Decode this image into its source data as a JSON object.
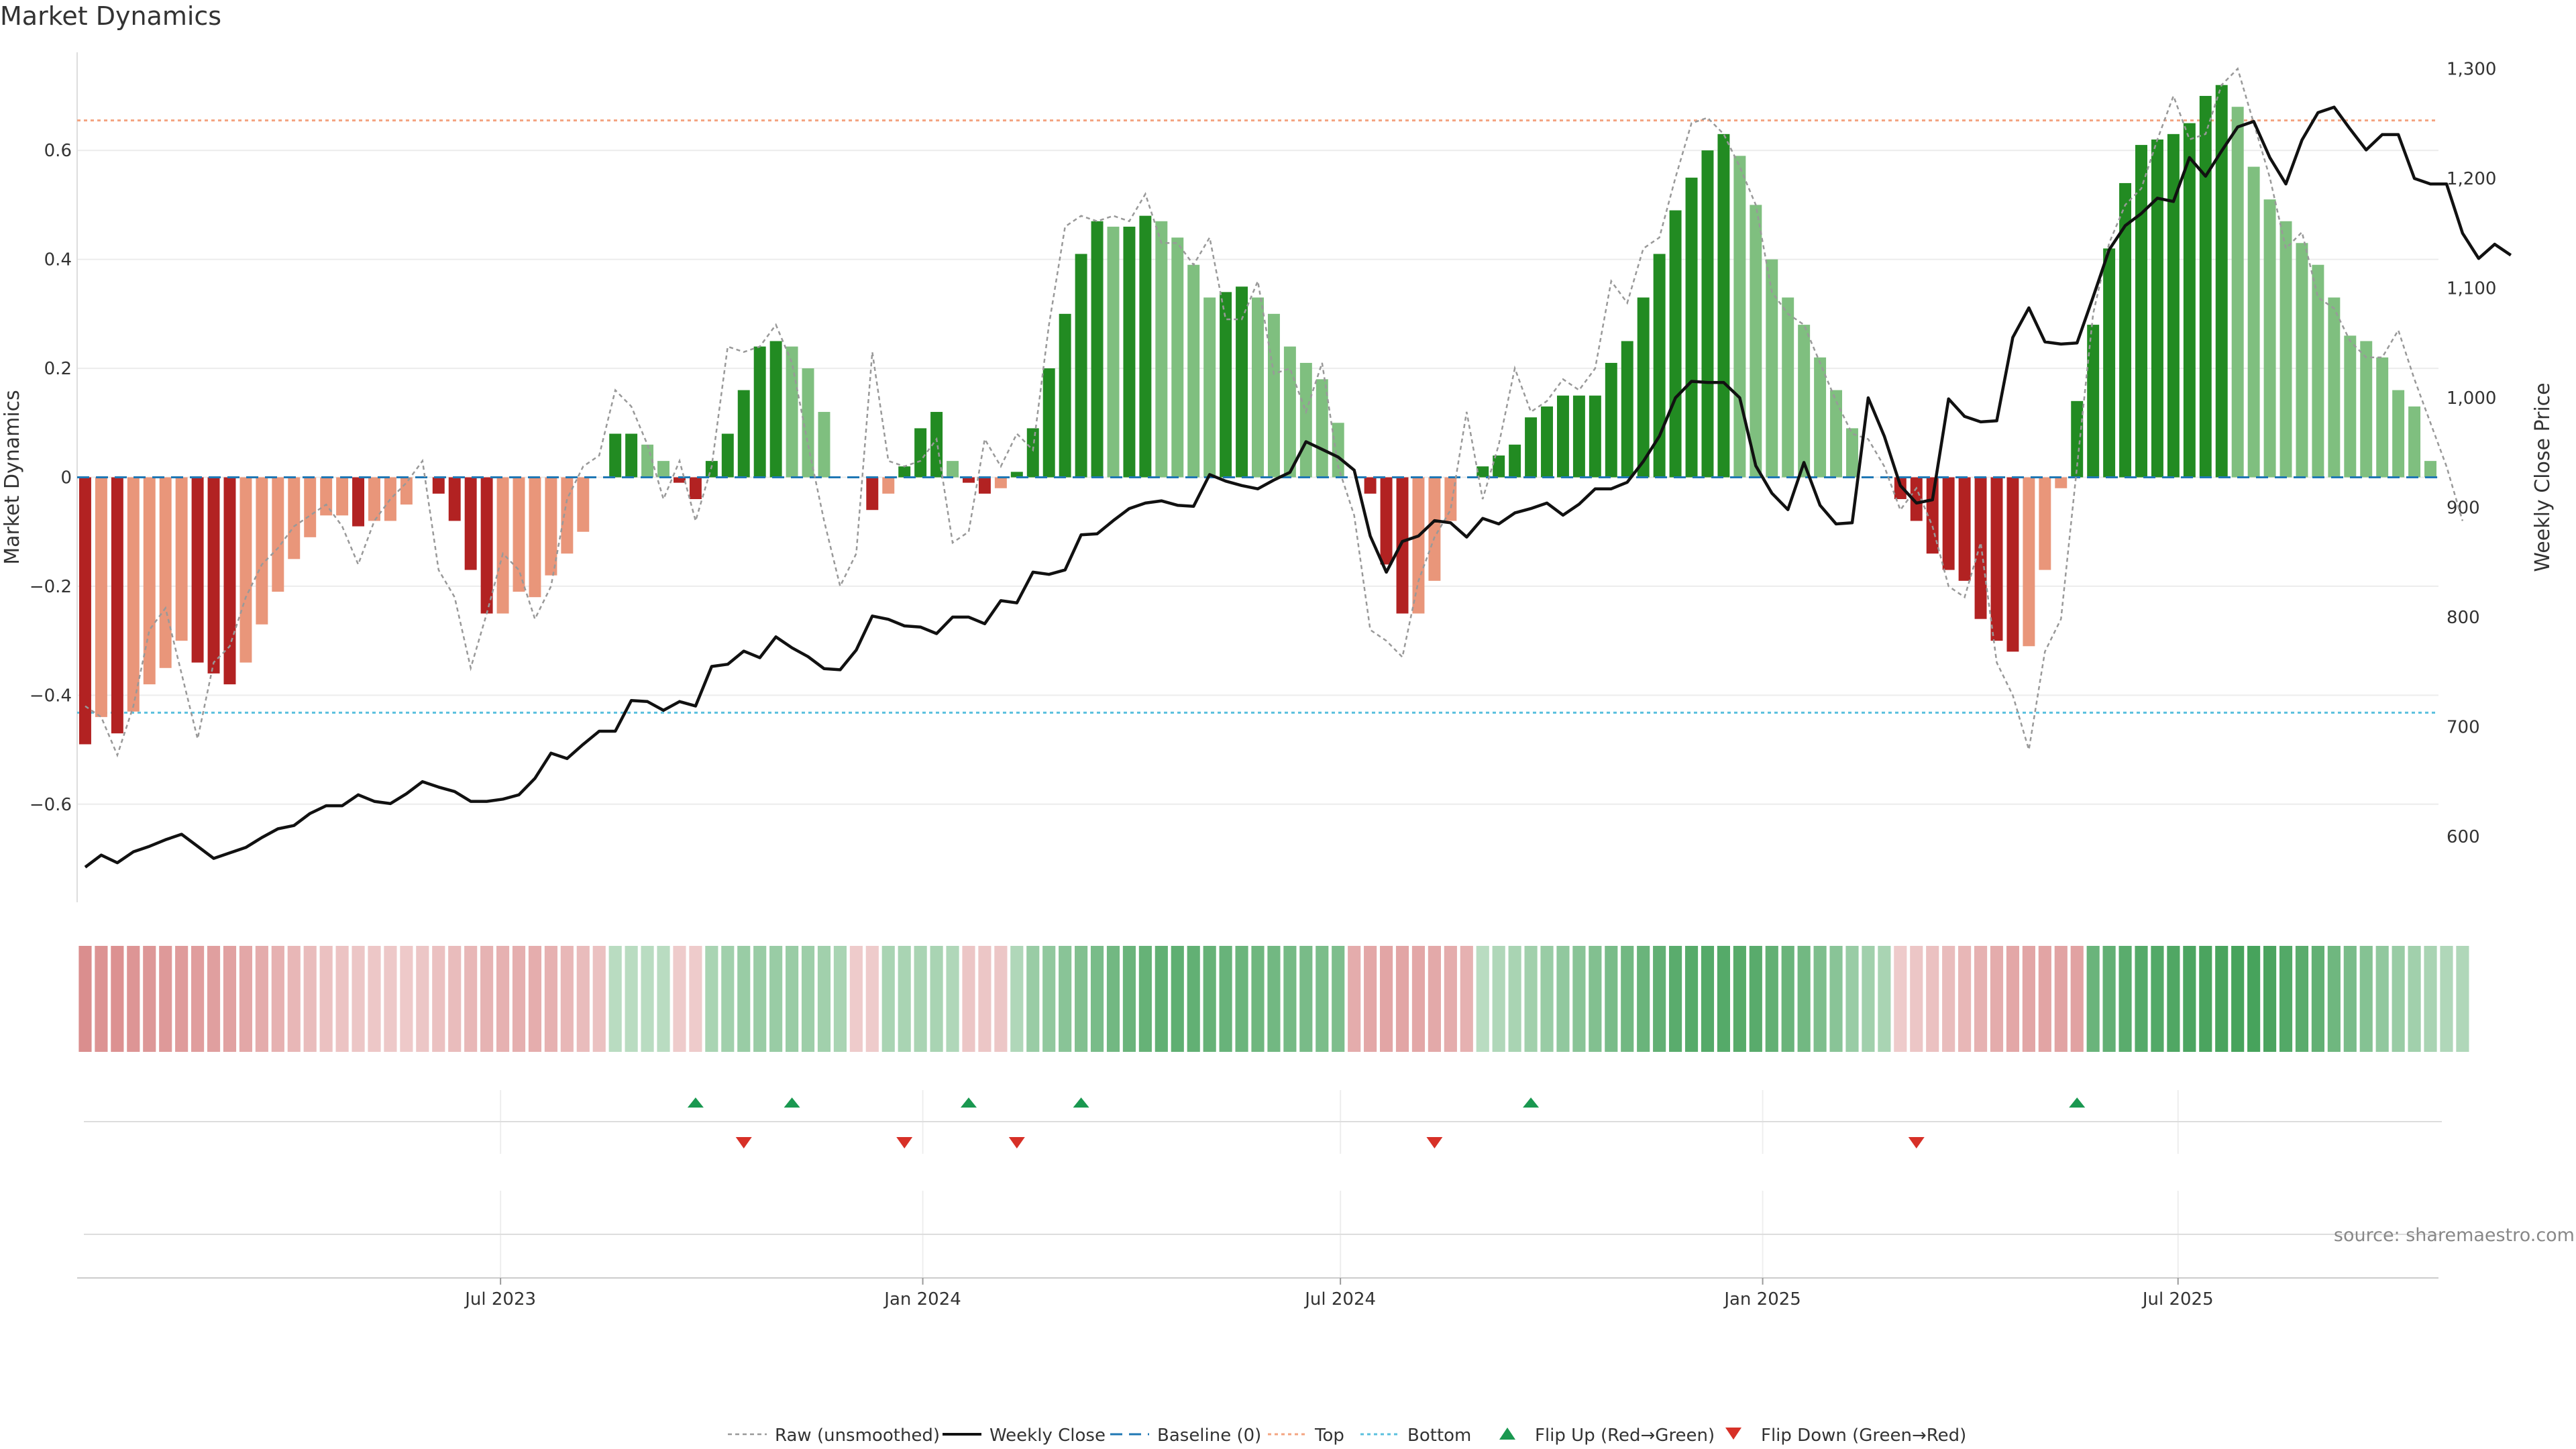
{
  "chart_data": {
    "type": "bar",
    "title": "Market Dynamics",
    "ylabel": "Market Dynamics",
    "ylabel_right": "Weekly Close Price",
    "yticks_left": [
      "0.6",
      "0.4",
      "0.2",
      "0",
      "−0.2",
      "−0.4",
      "−0.6"
    ],
    "yticks_right": [
      "1,300",
      "1,200",
      "1,100",
      "1,000",
      "900",
      "800",
      "700",
      "600"
    ],
    "xticks": [
      "Jul 2023",
      "Jan 2024",
      "Jul 2024",
      "Jan 2025",
      "Jul 2025"
    ],
    "ylim": [
      -0.78,
      0.78
    ],
    "ylim_right": [
      540,
      1315
    ],
    "top_line": 0.655,
    "bottom_line": -0.432,
    "grid": true,
    "legend_position": "bottom-center",
    "legend": [
      "Raw (unsmoothed)",
      "Weekly Close",
      "Baseline (0)",
      "Top",
      "Bottom",
      "Flip Up (Red→Green)",
      "Flip Down (Green→Red)"
    ],
    "source": "source: sharemaestro.com",
    "colors": {
      "strong_red": "#b22222",
      "light_red": "#e9967a",
      "strong_green": "#228b22",
      "light_green": "#7fbf7f",
      "top_line": "#f4a582",
      "bottom_line": "#5bc0de",
      "baseline": "#1f77b4",
      "raw": "#999999",
      "close": "#111111",
      "flip_up": "#1a9850",
      "flip_down": "#d73027"
    },
    "start_week": "2023-01-01",
    "bars": [
      {
        "v": -0.49,
        "s": "sr"
      },
      {
        "v": -0.44,
        "s": "lr"
      },
      {
        "v": -0.47,
        "s": "sr"
      },
      {
        "v": -0.43,
        "s": "lr"
      },
      {
        "v": -0.38,
        "s": "lr"
      },
      {
        "v": -0.35,
        "s": "lr"
      },
      {
        "v": -0.3,
        "s": "lr"
      },
      {
        "v": -0.34,
        "s": "sr"
      },
      {
        "v": -0.36,
        "s": "sr"
      },
      {
        "v": -0.38,
        "s": "sr"
      },
      {
        "v": -0.34,
        "s": "lr"
      },
      {
        "v": -0.27,
        "s": "lr"
      },
      {
        "v": -0.21,
        "s": "lr"
      },
      {
        "v": -0.15,
        "s": "lr"
      },
      {
        "v": -0.11,
        "s": "lr"
      },
      {
        "v": -0.07,
        "s": "lr"
      },
      {
        "v": -0.07,
        "s": "lr"
      },
      {
        "v": -0.09,
        "s": "sr"
      },
      {
        "v": -0.08,
        "s": "lr"
      },
      {
        "v": -0.08,
        "s": "lr"
      },
      {
        "v": -0.05,
        "s": "lr"
      },
      {
        "v": 0,
        "s": "none"
      },
      {
        "v": -0.03,
        "s": "sr"
      },
      {
        "v": -0.08,
        "s": "sr"
      },
      {
        "v": -0.17,
        "s": "sr"
      },
      {
        "v": -0.25,
        "s": "sr"
      },
      {
        "v": -0.25,
        "s": "lr"
      },
      {
        "v": -0.21,
        "s": "lr"
      },
      {
        "v": -0.22,
        "s": "lr"
      },
      {
        "v": -0.18,
        "s": "lr"
      },
      {
        "v": -0.14,
        "s": "lr"
      },
      {
        "v": -0.1,
        "s": "lr"
      },
      {
        "v": 0,
        "s": "none"
      },
      {
        "v": 0.08,
        "s": "sg"
      },
      {
        "v": 0.08,
        "s": "sg"
      },
      {
        "v": 0.06,
        "s": "lg"
      },
      {
        "v": 0.03,
        "s": "lg"
      },
      {
        "v": -0.01,
        "s": "sr"
      },
      {
        "v": -0.04,
        "s": "sr"
      },
      {
        "v": 0.03,
        "s": "sg"
      },
      {
        "v": 0.08,
        "s": "sg"
      },
      {
        "v": 0.16,
        "s": "sg"
      },
      {
        "v": 0.24,
        "s": "sg"
      },
      {
        "v": 0.25,
        "s": "sg"
      },
      {
        "v": 0.24,
        "s": "lg"
      },
      {
        "v": 0.2,
        "s": "lg"
      },
      {
        "v": 0.12,
        "s": "lg"
      },
      {
        "v": 0,
        "s": "none"
      },
      {
        "v": 0,
        "s": "none"
      },
      {
        "v": -0.06,
        "s": "sr"
      },
      {
        "v": -0.03,
        "s": "lr"
      },
      {
        "v": 0.02,
        "s": "sg"
      },
      {
        "v": 0.09,
        "s": "sg"
      },
      {
        "v": 0.12,
        "s": "sg"
      },
      {
        "v": 0.03,
        "s": "lg"
      },
      {
        "v": -0.01,
        "s": "sr"
      },
      {
        "v": -0.03,
        "s": "sr"
      },
      {
        "v": -0.02,
        "s": "lr"
      },
      {
        "v": 0.01,
        "s": "sg"
      },
      {
        "v": 0.09,
        "s": "sg"
      },
      {
        "v": 0.2,
        "s": "sg"
      },
      {
        "v": 0.3,
        "s": "sg"
      },
      {
        "v": 0.41,
        "s": "sg"
      },
      {
        "v": 0.47,
        "s": "sg"
      },
      {
        "v": 0.46,
        "s": "lg"
      },
      {
        "v": 0.46,
        "s": "sg"
      },
      {
        "v": 0.48,
        "s": "sg"
      },
      {
        "v": 0.47,
        "s": "lg"
      },
      {
        "v": 0.44,
        "s": "lg"
      },
      {
        "v": 0.39,
        "s": "lg"
      },
      {
        "v": 0.33,
        "s": "lg"
      },
      {
        "v": 0.34,
        "s": "sg"
      },
      {
        "v": 0.35,
        "s": "sg"
      },
      {
        "v": 0.33,
        "s": "lg"
      },
      {
        "v": 0.3,
        "s": "lg"
      },
      {
        "v": 0.24,
        "s": "lg"
      },
      {
        "v": 0.21,
        "s": "lg"
      },
      {
        "v": 0.18,
        "s": "lg"
      },
      {
        "v": 0.1,
        "s": "lg"
      },
      {
        "v": 0,
        "s": "none"
      },
      {
        "v": -0.03,
        "s": "sr"
      },
      {
        "v": -0.16,
        "s": "sr"
      },
      {
        "v": -0.25,
        "s": "sr"
      },
      {
        "v": -0.25,
        "s": "lr"
      },
      {
        "v": -0.19,
        "s": "lr"
      },
      {
        "v": -0.08,
        "s": "lr"
      },
      {
        "v": 0,
        "s": "none"
      },
      {
        "v": 0.02,
        "s": "sg"
      },
      {
        "v": 0.04,
        "s": "sg"
      },
      {
        "v": 0.06,
        "s": "sg"
      },
      {
        "v": 0.11,
        "s": "sg"
      },
      {
        "v": 0.13,
        "s": "sg"
      },
      {
        "v": 0.15,
        "s": "sg"
      },
      {
        "v": 0.15,
        "s": "sg"
      },
      {
        "v": 0.15,
        "s": "sg"
      },
      {
        "v": 0.21,
        "s": "sg"
      },
      {
        "v": 0.25,
        "s": "sg"
      },
      {
        "v": 0.33,
        "s": "sg"
      },
      {
        "v": 0.41,
        "s": "sg"
      },
      {
        "v": 0.49,
        "s": "sg"
      },
      {
        "v": 0.55,
        "s": "sg"
      },
      {
        "v": 0.6,
        "s": "sg"
      },
      {
        "v": 0.63,
        "s": "sg"
      },
      {
        "v": 0.59,
        "s": "lg"
      },
      {
        "v": 0.5,
        "s": "lg"
      },
      {
        "v": 0.4,
        "s": "lg"
      },
      {
        "v": 0.33,
        "s": "lg"
      },
      {
        "v": 0.28,
        "s": "lg"
      },
      {
        "v": 0.22,
        "s": "lg"
      },
      {
        "v": 0.16,
        "s": "lg"
      },
      {
        "v": 0.09,
        "s": "lg"
      },
      {
        "v": 0,
        "s": "none"
      },
      {
        "v": 0,
        "s": "none"
      },
      {
        "v": -0.04,
        "s": "sr"
      },
      {
        "v": -0.08,
        "s": "sr"
      },
      {
        "v": -0.14,
        "s": "sr"
      },
      {
        "v": -0.17,
        "s": "sr"
      },
      {
        "v": -0.19,
        "s": "sr"
      },
      {
        "v": -0.26,
        "s": "sr"
      },
      {
        "v": -0.3,
        "s": "sr"
      },
      {
        "v": -0.32,
        "s": "sr"
      },
      {
        "v": -0.31,
        "s": "lr"
      },
      {
        "v": -0.17,
        "s": "lr"
      },
      {
        "v": -0.02,
        "s": "lr"
      },
      {
        "v": 0.14,
        "s": "sg"
      },
      {
        "v": 0.28,
        "s": "sg"
      },
      {
        "v": 0.42,
        "s": "sg"
      },
      {
        "v": 0.54,
        "s": "sg"
      },
      {
        "v": 0.61,
        "s": "sg"
      },
      {
        "v": 0.62,
        "s": "sg"
      },
      {
        "v": 0.63,
        "s": "sg"
      },
      {
        "v": 0.65,
        "s": "sg"
      },
      {
        "v": 0.7,
        "s": "sg"
      },
      {
        "v": 0.72,
        "s": "sg"
      },
      {
        "v": 0.68,
        "s": "lg"
      },
      {
        "v": 0.57,
        "s": "lg"
      },
      {
        "v": 0.51,
        "s": "lg"
      },
      {
        "v": 0.47,
        "s": "lg"
      },
      {
        "v": 0.43,
        "s": "lg"
      },
      {
        "v": 0.39,
        "s": "lg"
      },
      {
        "v": 0.33,
        "s": "lg"
      },
      {
        "v": 0.26,
        "s": "lg"
      },
      {
        "v": 0.25,
        "s": "lg"
      },
      {
        "v": 0.22,
        "s": "lg"
      },
      {
        "v": 0.16,
        "s": "lg"
      },
      {
        "v": 0.13,
        "s": "lg"
      },
      {
        "v": 0.03,
        "s": "lg"
      }
    ],
    "raw": [
      -0.42,
      -0.44,
      -0.51,
      -0.42,
      -0.28,
      -0.24,
      -0.36,
      -0.48,
      -0.34,
      -0.31,
      -0.22,
      -0.16,
      -0.13,
      -0.09,
      -0.07,
      -0.05,
      -0.09,
      -0.16,
      -0.08,
      -0.04,
      -0.01,
      0.03,
      -0.17,
      -0.22,
      -0.35,
      -0.25,
      -0.14,
      -0.17,
      -0.26,
      -0.2,
      -0.04,
      0.02,
      0.04,
      0.16,
      0.13,
      0.06,
      -0.04,
      0.03,
      -0.08,
      0.02,
      0.24,
      0.23,
      0.24,
      0.28,
      0.21,
      0.06,
      -0.08,
      -0.2,
      -0.14,
      0.23,
      0.03,
      0.02,
      0.03,
      0.07,
      -0.12,
      -0.1,
      0.07,
      0.02,
      0.08,
      0.05,
      0.28,
      0.46,
      0.48,
      0.47,
      0.48,
      0.47,
      0.52,
      0.43,
      0.43,
      0.39,
      0.44,
      0.29,
      0.29,
      0.36,
      0.19,
      0.2,
      0.12,
      0.21,
      0.02,
      -0.07,
      -0.28,
      -0.3,
      -0.33,
      -0.19,
      -0.11,
      -0.06,
      0.12,
      -0.04,
      0.06,
      0.2,
      0.12,
      0.14,
      0.18,
      0.16,
      0.2,
      0.36,
      0.32,
      0.42,
      0.44,
      0.55,
      0.65,
      0.66,
      0.63,
      0.57,
      0.5,
      0.34,
      0.3,
      0.28,
      0.21,
      0.14,
      0.08,
      0.07,
      0.02,
      -0.06,
      -0.02,
      -0.09,
      -0.2,
      -0.22,
      -0.12,
      -0.34,
      -0.4,
      -0.5,
      -0.32,
      -0.26,
      0.02,
      0.3,
      0.43,
      0.5,
      0.53,
      0.62,
      0.7,
      0.62,
      0.63,
      0.72,
      0.75,
      0.65,
      0.55,
      0.42,
      0.45,
      0.33,
      0.31,
      0.25,
      0.22,
      0.22,
      0.27,
      0.18,
      0.1,
      0.02,
      -0.08
    ],
    "close": [
      572,
      583,
      576,
      586,
      591,
      597,
      602,
      591,
      580,
      585,
      590,
      599,
      607,
      610,
      621,
      628,
      628,
      638,
      632,
      630,
      639,
      650,
      645,
      641,
      632,
      632,
      634,
      638,
      653,
      676,
      671,
      684,
      696,
      696,
      724,
      723,
      715,
      723,
      719,
      755,
      757,
      769,
      763,
      782,
      772,
      764,
      753,
      752,
      770,
      801,
      798,
      792,
      791,
      785,
      800,
      800,
      794,
      815,
      813,
      841,
      839,
      843,
      875,
      876,
      888,
      899,
      904,
      906,
      902,
      901,
      930,
      924,
      920,
      917,
      925,
      932,
      960,
      953,
      946,
      934,
      874,
      841,
      869,
      874,
      888,
      886,
      873,
      890,
      885,
      895,
      899,
      904,
      893,
      903,
      917,
      917,
      923,
      942,
      965,
      1000,
      1015,
      1014,
      1014,
      1000,
      938,
      913,
      898,
      941,
      902,
      885,
      886,
      1000,
      965,
      920,
      904,
      907,
      999,
      983,
      978,
      979,
      1055,
      1082,
      1051,
      1049,
      1050,
      1092,
      1135,
      1157,
      1168,
      1182,
      1179,
      1219,
      1202,
      1225,
      1247,
      1252,
      1219,
      1195,
      1235,
      1260,
      1265,
      1245,
      1226,
      1240,
      1240,
      1200,
      1195,
      1195,
      1150,
      1127,
      1140,
      1130
    ],
    "flips_up": [
      "2023-09-24",
      "2023-11-05",
      "2024-01-21",
      "2024-03-10",
      "2024-09-22",
      "2025-05-18"
    ],
    "flips_down": [
      "2023-10-15",
      "2023-12-24",
      "2024-02-11",
      "2024-08-11",
      "2025-03-09"
    ],
    "heat": [
      -0.85,
      -0.8,
      -0.82,
      -0.78,
      -0.76,
      -0.74,
      -0.72,
      -0.7,
      -0.68,
      -0.66,
      -0.6,
      -0.55,
      -0.5,
      -0.45,
      -0.4,
      -0.35,
      -0.32,
      -0.3,
      -0.28,
      -0.27,
      -0.26,
      -0.3,
      -0.35,
      -0.4,
      -0.45,
      -0.48,
      -0.5,
      -0.52,
      -0.54,
      -0.5,
      -0.45,
      -0.4,
      -0.35,
      0.25,
      0.25,
      0.25,
      0.25,
      -0.25,
      -0.25,
      0.35,
      0.4,
      0.45,
      0.45,
      0.45,
      0.45,
      0.42,
      0.4,
      0.35,
      -0.25,
      -0.25,
      0.35,
      0.35,
      0.35,
      0.35,
      0.3,
      -0.3,
      -0.3,
      -0.3,
      0.3,
      0.45,
      0.5,
      0.55,
      0.6,
      0.65,
      0.7,
      0.75,
      0.78,
      0.8,
      0.82,
      0.8,
      0.78,
      0.76,
      0.74,
      0.72,
      0.7,
      0.68,
      0.66,
      0.64,
      0.62,
      -0.55,
      -0.6,
      -0.62,
      -0.62,
      -0.6,
      -0.58,
      -0.55,
      -0.5,
      0.25,
      0.3,
      0.35,
      0.4,
      0.45,
      0.5,
      0.55,
      0.6,
      0.65,
      0.7,
      0.75,
      0.8,
      0.85,
      0.87,
      0.88,
      0.88,
      0.87,
      0.86,
      0.8,
      0.75,
      0.7,
      0.62,
      0.55,
      0.45,
      0.4,
      0.35,
      -0.25,
      -0.3,
      -0.35,
      -0.4,
      -0.45,
      -0.5,
      -0.55,
      -0.6,
      -0.62,
      -0.63,
      -0.64,
      -0.65,
      0.75,
      0.8,
      0.85,
      0.88,
      0.9,
      0.92,
      0.94,
      0.95,
      0.96,
      0.97,
      0.97,
      0.95,
      0.9,
      0.85,
      0.8,
      0.72,
      0.65,
      0.58,
      0.5,
      0.45,
      0.4,
      0.35,
      0.3,
      0.3
    ]
  }
}
